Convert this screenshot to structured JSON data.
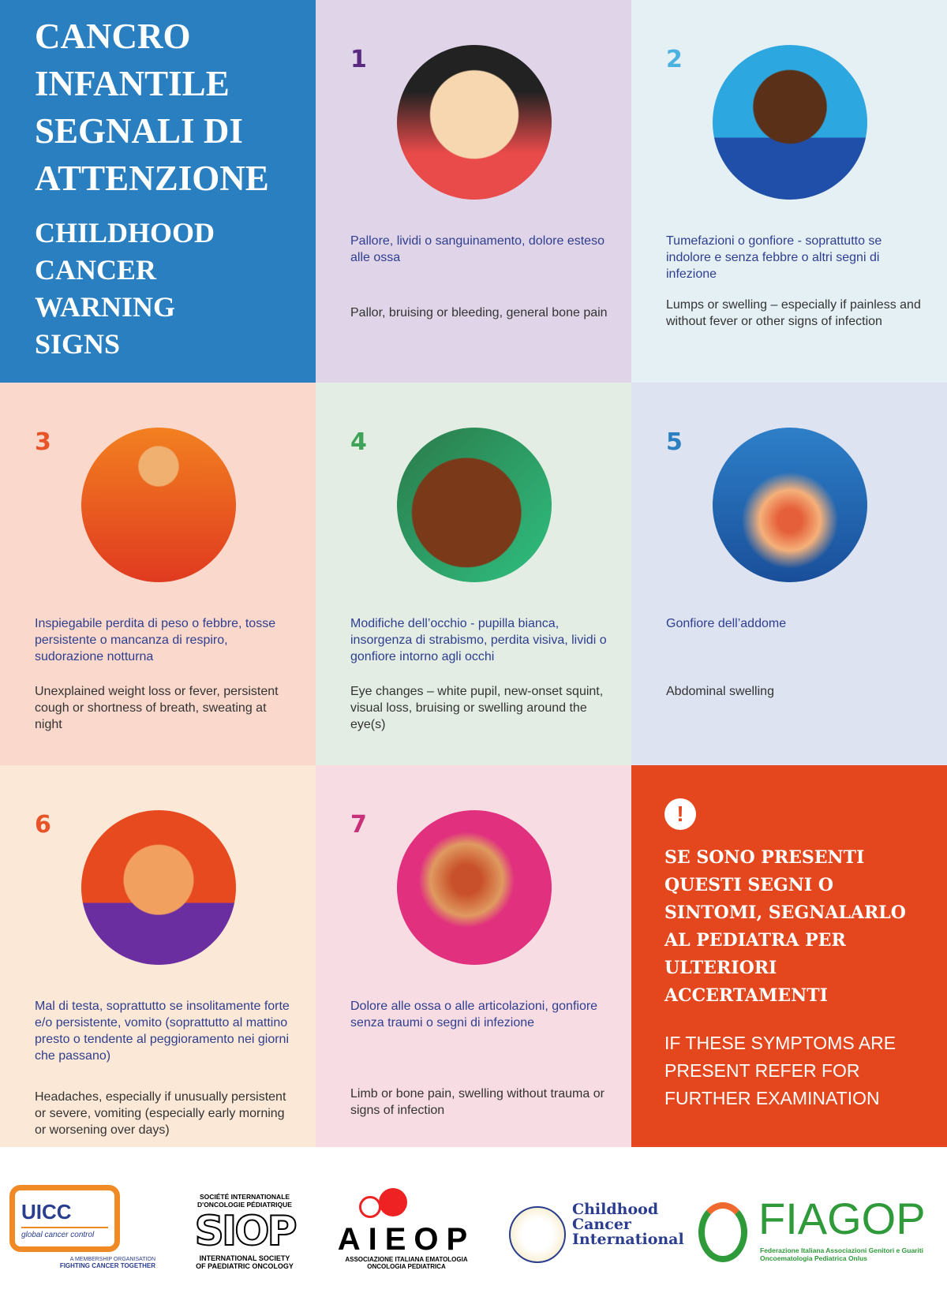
{
  "title": {
    "italian": [
      "CANCRO",
      "INFANTILE",
      "SEGNALI DI",
      "ATTENZIONE"
    ],
    "english": [
      "CHILDHOOD",
      "CANCER",
      "WARNING",
      "SIGNS"
    ]
  },
  "signs": [
    {
      "number": "1",
      "color": "#5a2a82",
      "bg": "#e0d5e8",
      "italian": "Pallore, lividi o sanguinamento, dolore esteso alle ossa",
      "english": "Pallor, bruising or bleeding, general bone pain",
      "icon": "pale-child-illustration"
    },
    {
      "number": "2",
      "color": "#4bb1e0",
      "bg": "#e5f0f4",
      "italian": "Tumefazioni o gonfiore - soprattutto se indolore e senza febbre o altri segni di infezione",
      "english": "Lumps or swelling – especially if painless and without fever or other signs of infection",
      "icon": "swollen-neck-illustration"
    },
    {
      "number": "3",
      "color": "#e8542a",
      "bg": "#fad9cc",
      "italian": "Inspiegabile perdita di peso o febbre, tosse persistente o mancanza di respiro, sudorazione notturna",
      "english": "Unexplained weight loss or fever, persistent cough or shortness of breath, sweating at night",
      "icon": "weight-loss-illustration"
    },
    {
      "number": "4",
      "color": "#3fa35a",
      "bg": "#e3ede3",
      "italian": "Modifiche dell’occhio - pupilla bianca, insorgenza di strabismo, perdita visiva, lividi o gonfiore intorno agli occhi",
      "english": "Eye changes – white pupil, new-onset squint, visual loss, bruising or swelling around the eye(s)",
      "icon": "white-pupil-illustration"
    },
    {
      "number": "5",
      "color": "#2a7fc0",
      "bg": "#dde3f0",
      "italian": "Gonfiore dell’addome",
      "english": "Abdominal swelling",
      "icon": "abdominal-swelling-illustration"
    },
    {
      "number": "6",
      "color": "#e8542a",
      "bg": "#fbe8d7",
      "italian": "Mal di testa, soprattutto se insolitamente forte e/o persistente, vomito (soprattutto al mattino presto o tendente al peggioramento nei giorni che passano)",
      "english": "Headaches, especially if unusually persistent or severe, vomiting (especially early morning or worsening over days)",
      "icon": "headache-illustration"
    },
    {
      "number": "7",
      "color": "#c8307a",
      "bg": "#f7dde3",
      "italian": "Dolore alle ossa o alle articolazioni, gonfiore senza traumi o segni di infezione",
      "english": "Limb or bone pain, swelling without trauma or signs of infection",
      "icon": "limb-pain-illustration"
    }
  ],
  "alert": {
    "icon": "exclamation-icon",
    "symbol": "!",
    "italian": "SE SONO PRESENTI QUESTI SEGNI O SINTOMI, SEGNALARLO AL PEDIATRA PER ULTERIORI ACCERTAMENTI",
    "english": "IF THESE SYMPTOMS ARE PRESENT REFER FOR FURTHER EXAMINATION",
    "bg": "#e4471e"
  },
  "logos": {
    "uicc": {
      "name": "UICC",
      "tagline": "global cancer control",
      "sub1": "A MEMBERSHIP ORGANISATION",
      "sub2": "FIGHTING CANCER TOGETHER"
    },
    "siop": {
      "top1": "SOCIÉTÉ INTERNATIONALE",
      "top2": "D'ONCOLOGIE PÉDIATRIQUE",
      "name": "SIOP",
      "bottom1": "INTERNATIONAL SOCIETY",
      "bottom2": "OF PAEDIATRIC ONCOLOGY"
    },
    "aieop": {
      "name": "AIEOP",
      "sub1": "ASSOCIAZIONE ITALIANA EMATOLOGIA",
      "sub2": "ONCOLOGIA PEDIATRICA"
    },
    "cci": {
      "line1": "Childhood",
      "line2": "Cancer",
      "line3": "International"
    },
    "fiagop": {
      "name": "FIAGOP",
      "sub1": "Federazione Italiana Associazioni Genitori e Guariti",
      "sub2": "Oncoematologia Pediatrica Onlus"
    }
  }
}
